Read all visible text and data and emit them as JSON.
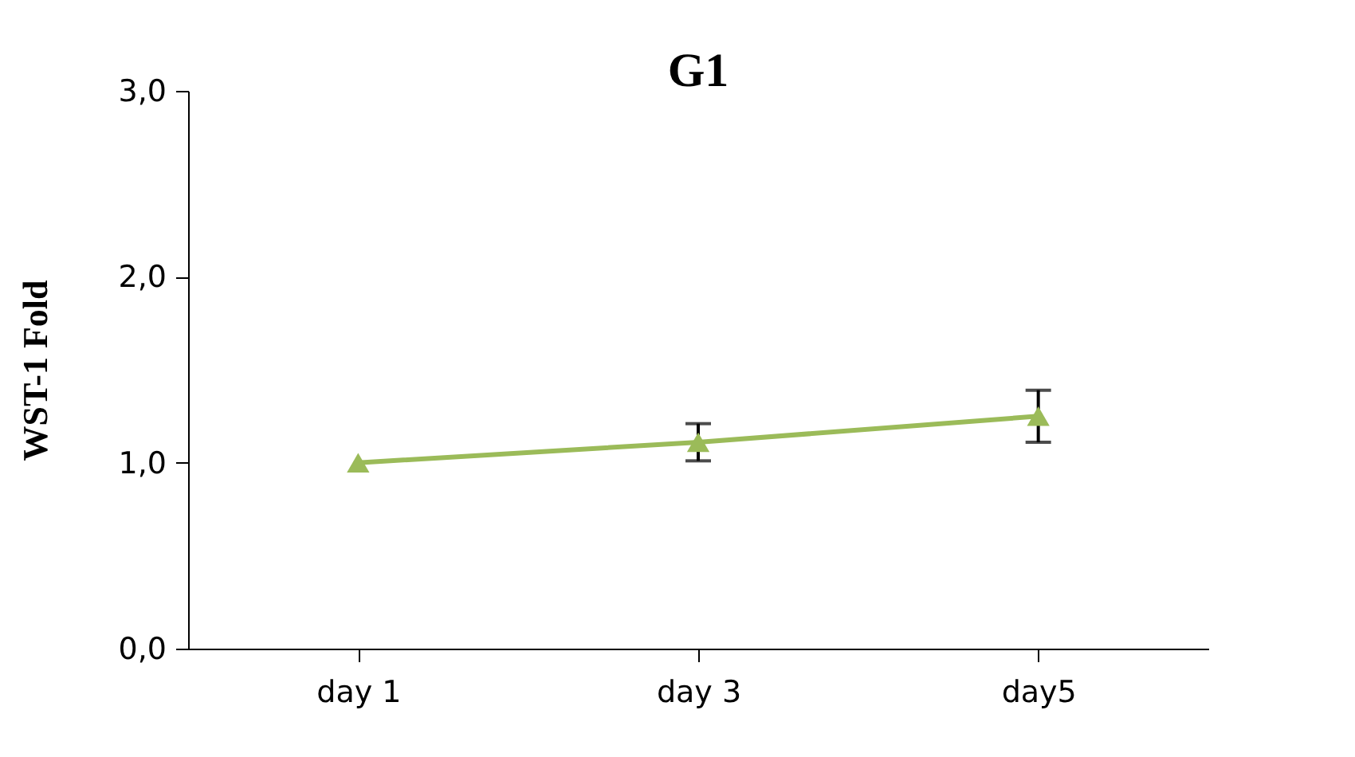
{
  "chart_data": {
    "type": "line",
    "title": "G1",
    "ylabel": "WST-1  Fold",
    "categories": [
      "day 1",
      "day 3",
      "day5"
    ],
    "series": [
      {
        "color": "#9bbb59",
        "values": [
          1.0,
          1.11,
          1.25
        ],
        "errors": [
          null,
          0.1,
          0.14
        ]
      }
    ],
    "ylim": [
      0,
      3
    ],
    "yticks": [
      {
        "value": 0,
        "label": "0,0"
      },
      {
        "value": 1,
        "label": "1,0"
      },
      {
        "value": 2,
        "label": "2,0"
      },
      {
        "value": 3,
        "label": "3,0"
      }
    ],
    "marker": "triangle",
    "line_style": "solid",
    "grid": false
  }
}
